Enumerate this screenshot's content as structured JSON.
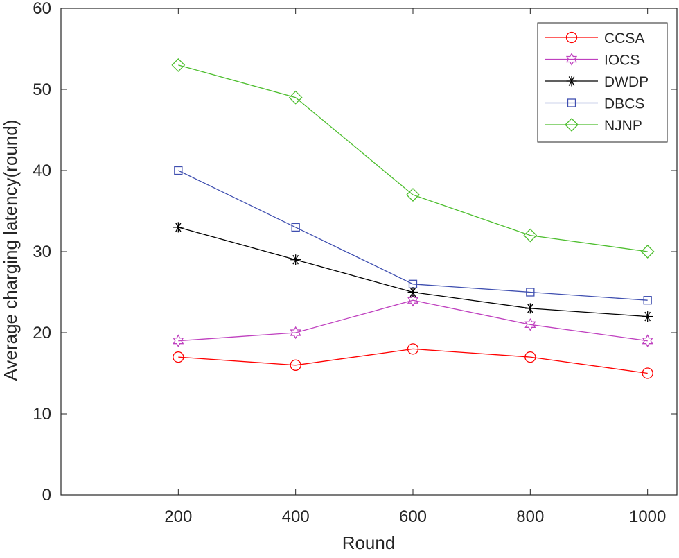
{
  "chart_data": {
    "type": "line",
    "title": "",
    "xlabel": "Round",
    "ylabel": "Average charging latency(round)",
    "x": [
      200,
      400,
      600,
      800,
      1000
    ],
    "xlim": [
      0,
      1050
    ],
    "ylim": [
      0,
      60
    ],
    "xticks": [
      "200",
      "400",
      "600",
      "800",
      "1000"
    ],
    "yticks": [
      "0",
      "10",
      "20",
      "30",
      "40",
      "50",
      "60"
    ],
    "grid": false,
    "legend_position": "top-right",
    "series": [
      {
        "name": "CCSA",
        "color": "#ff0000",
        "marker": "circle",
        "values": [
          17,
          16,
          18,
          17,
          15
        ]
      },
      {
        "name": "IOCS",
        "color": "#bf40bf",
        "marker": "hexagram",
        "values": [
          19,
          20,
          24,
          21,
          19
        ]
      },
      {
        "name": "DWDP",
        "color": "#000000",
        "marker": "asterisk",
        "values": [
          33,
          29,
          25,
          23,
          22
        ]
      },
      {
        "name": "DBCS",
        "color": "#3f4fb0",
        "marker": "square",
        "values": [
          40,
          33,
          26,
          25,
          24
        ]
      },
      {
        "name": "NJNP",
        "color": "#4dbe2e",
        "marker": "diamond",
        "values": [
          53,
          49,
          37,
          32,
          30
        ]
      }
    ]
  }
}
